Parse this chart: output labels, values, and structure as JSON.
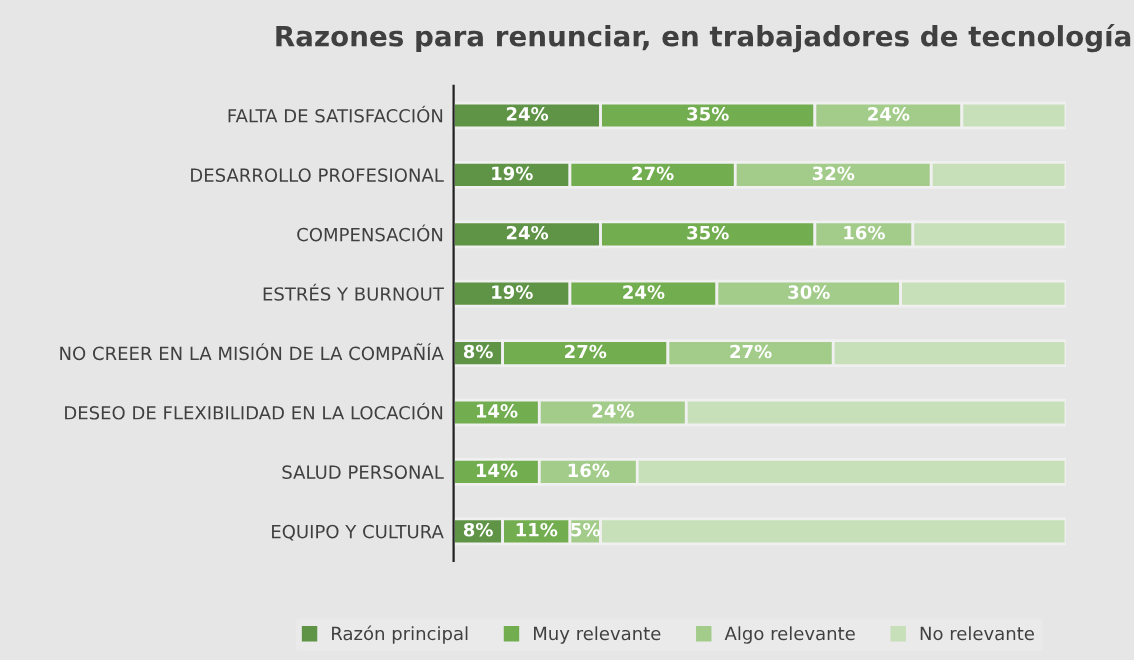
{
  "chart_data": {
    "type": "bar",
    "orientation": "horizontal",
    "stacked": true,
    "title": "Razones para renunciar, en trabajadores de tecnología",
    "legend": "bottom",
    "grid": false,
    "categories": [
      "FALTA DE SATISFACCIÓN",
      "DESARROLLO PROFESIONAL",
      "COMPENSACIÓN",
      "ESTRÉS Y BURNOUT",
      "NO CREER EN LA MISIÓN DE LA COMPAÑÍA",
      "DESEO DE FLEXIBILIDAD EN LA LOCACIÓN",
      "SALUD PERSONAL",
      "EQUIPO Y CULTURA"
    ],
    "series": [
      {
        "name": "Razón principal",
        "color": "#5f9447",
        "values": [
          24,
          19,
          24,
          19,
          8,
          null,
          null,
          8
        ],
        "value_labels": [
          "24%",
          "19%",
          "24%",
          "19%",
          "8%",
          null,
          null,
          "8%"
        ]
      },
      {
        "name": "Muy relevante",
        "color": "#72ad4f",
        "values": [
          35,
          27,
          35,
          24,
          27,
          14,
          14,
          11
        ],
        "value_labels": [
          "35%",
          "27%",
          "35%",
          "24%",
          "27%",
          "14%",
          "14%",
          "11%"
        ]
      },
      {
        "name": "Algo relevante",
        "color": "#a3cc8b",
        "values": [
          24,
          32,
          16,
          30,
          27,
          24,
          16,
          5
        ],
        "value_labels": [
          "24%",
          "32%",
          "16%",
          "30%",
          "27%",
          "24%",
          "16%",
          "5%"
        ]
      },
      {
        "name": "No relevante",
        "color": "#c8e0b9",
        "values": [
          17,
          22,
          25,
          27,
          38,
          62,
          70,
          76
        ]
      }
    ]
  }
}
